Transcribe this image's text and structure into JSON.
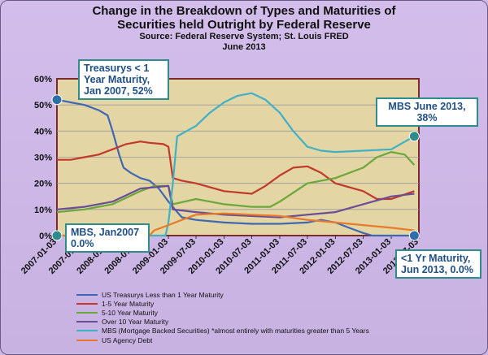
{
  "title_line1": "Change in the Breakdown of Types and Maturities of",
  "title_line2": "Securities held Outright by Federal Reserve",
  "source_line": "Source: Federal Reserve System; St. Louis FRED",
  "date_line": "June 2013",
  "callouts": {
    "treasury_jan2007": "Treasurys  < 1 Year Maturity, Jan 2007, 52%",
    "mbs_jun2013": "MBS  June 2013, 38%",
    "mbs_jan2007": "MBS, Jan2007 0.0%",
    "treasury_jun2013": "<1 Yr Maturity, Jun 2013, 0.0%"
  },
  "chart_data": {
    "type": "line",
    "ylim": [
      0,
      60
    ],
    "yticks": [
      "0%",
      "10%",
      "20%",
      "30%",
      "40%",
      "50%",
      "60%"
    ],
    "x_tick_labels": [
      "2007-01-03",
      "2007-07-03",
      "2008-01-03",
      "2008-07-03",
      "2009-01-03",
      "2009-07-03",
      "2010-01-03",
      "2010-07-03",
      "2011-01-03",
      "2011-07-03",
      "2012-01-03",
      "2012-07-03",
      "2013-01-03",
      "2013-07-03"
    ],
    "xlim": [
      "2007-01-03",
      "2013-07-03"
    ],
    "grid": true,
    "legend_position": "bottom",
    "series": [
      {
        "name": "US Treasurys Less than 1 Year Maturity",
        "color": "#3f68b4",
        "points": [
          [
            "2007-01-03",
            52
          ],
          [
            "2007-04-03",
            51
          ],
          [
            "2007-07-03",
            50
          ],
          [
            "2007-10-03",
            48
          ],
          [
            "2007-12-01",
            46
          ],
          [
            "2008-01-03",
            40
          ],
          [
            "2008-02-15",
            31
          ],
          [
            "2008-03-15",
            26
          ],
          [
            "2008-05-01",
            24
          ],
          [
            "2008-07-03",
            22
          ],
          [
            "2008-09-01",
            21
          ],
          [
            "2008-11-01",
            18
          ],
          [
            "2009-01-03",
            13
          ],
          [
            "2009-02-15",
            10
          ],
          [
            "2009-04-01",
            7
          ],
          [
            "2009-07-03",
            6
          ],
          [
            "2010-01-03",
            5
          ],
          [
            "2010-07-03",
            4.5
          ],
          [
            "2011-01-03",
            4.5
          ],
          [
            "2011-07-03",
            5
          ],
          [
            "2011-10-01",
            6
          ],
          [
            "2012-01-03",
            5
          ],
          [
            "2012-04-01",
            3
          ],
          [
            "2012-07-03",
            1
          ],
          [
            "2012-09-01",
            0
          ],
          [
            "2013-01-03",
            0
          ],
          [
            "2013-06-03",
            0
          ]
        ]
      },
      {
        "name": "1-5 Year Maturity",
        "color": "#c0392b",
        "points": [
          [
            "2007-01-03",
            29
          ],
          [
            "2007-04-03",
            29
          ],
          [
            "2007-07-03",
            30
          ],
          [
            "2007-10-03",
            31
          ],
          [
            "2008-01-03",
            33
          ],
          [
            "2008-04-01",
            35
          ],
          [
            "2008-07-03",
            36
          ],
          [
            "2008-09-01",
            35.5
          ],
          [
            "2008-12-01",
            35
          ],
          [
            "2009-01-03",
            34
          ],
          [
            "2009-02-01",
            22
          ],
          [
            "2009-04-01",
            21
          ],
          [
            "2009-07-03",
            20
          ],
          [
            "2010-01-03",
            17
          ],
          [
            "2010-07-03",
            16
          ],
          [
            "2010-10-01",
            19
          ],
          [
            "2011-01-03",
            23
          ],
          [
            "2011-04-01",
            26
          ],
          [
            "2011-07-03",
            26.5
          ],
          [
            "2011-10-01",
            24
          ],
          [
            "2012-01-03",
            20
          ],
          [
            "2012-07-03",
            17
          ],
          [
            "2012-10-01",
            14
          ],
          [
            "2013-01-03",
            14
          ],
          [
            "2013-06-03",
            17
          ]
        ]
      },
      {
        "name": "5-10 Year Maturity",
        "color": "#6aa83a",
        "points": [
          [
            "2007-01-03",
            9
          ],
          [
            "2007-07-03",
            10
          ],
          [
            "2008-01-03",
            12
          ],
          [
            "2008-07-03",
            17
          ],
          [
            "2008-10-01",
            19
          ],
          [
            "2009-01-03",
            19
          ],
          [
            "2009-02-01",
            12
          ],
          [
            "2009-07-03",
            14
          ],
          [
            "2010-01-03",
            12
          ],
          [
            "2010-07-03",
            11
          ],
          [
            "2010-11-01",
            11
          ],
          [
            "2011-01-03",
            13
          ],
          [
            "2011-07-03",
            20
          ],
          [
            "2012-01-03",
            22
          ],
          [
            "2012-07-03",
            26
          ],
          [
            "2012-10-01",
            30
          ],
          [
            "2013-01-03",
            32
          ],
          [
            "2013-04-01",
            31
          ],
          [
            "2013-06-03",
            27
          ]
        ]
      },
      {
        "name": "Over 10 Year Maturity",
        "color": "#6a4c97",
        "points": [
          [
            "2007-01-03",
            10
          ],
          [
            "2007-07-03",
            11
          ],
          [
            "2008-01-03",
            13
          ],
          [
            "2008-07-03",
            18
          ],
          [
            "2009-01-03",
            19
          ],
          [
            "2009-02-01",
            10
          ],
          [
            "2009-07-03",
            9
          ],
          [
            "2010-01-03",
            8
          ],
          [
            "2010-07-03",
            7.5
          ],
          [
            "2011-01-03",
            7
          ],
          [
            "2011-07-03",
            8
          ],
          [
            "2012-01-03",
            9
          ],
          [
            "2012-07-03",
            12
          ],
          [
            "2013-01-03",
            15
          ],
          [
            "2013-06-03",
            16
          ]
        ]
      },
      {
        "name": "MBS (Mortgage Backed Securities) *almost entirely with maturities greater than 5 Years",
        "color": "#3fb0c8",
        "points": [
          [
            "2007-01-03",
            0
          ],
          [
            "2008-12-15",
            0
          ],
          [
            "2009-01-03",
            5
          ],
          [
            "2009-02-01",
            20
          ],
          [
            "2009-03-01",
            38
          ],
          [
            "2009-07-03",
            42
          ],
          [
            "2009-10-01",
            47
          ],
          [
            "2010-01-03",
            51
          ],
          [
            "2010-04-01",
            53.5
          ],
          [
            "2010-07-03",
            54.5
          ],
          [
            "2010-10-01",
            52
          ],
          [
            "2011-01-03",
            47
          ],
          [
            "2011-04-01",
            40
          ],
          [
            "2011-07-03",
            34
          ],
          [
            "2011-10-01",
            32.5
          ],
          [
            "2012-01-03",
            32
          ],
          [
            "2012-07-03",
            32.5
          ],
          [
            "2013-01-03",
            33
          ],
          [
            "2013-06-03",
            38
          ]
        ]
      },
      {
        "name": "US Agency Debt",
        "color": "#e87a2a",
        "points": [
          [
            "2007-01-03",
            0
          ],
          [
            "2008-09-01",
            0
          ],
          [
            "2008-10-01",
            2
          ],
          [
            "2009-01-03",
            4
          ],
          [
            "2009-04-01",
            6
          ],
          [
            "2009-07-03",
            8
          ],
          [
            "2010-01-03",
            8.5
          ],
          [
            "2010-07-03",
            8
          ],
          [
            "2011-01-03",
            7.5
          ],
          [
            "2011-07-03",
            6
          ],
          [
            "2012-01-03",
            5
          ],
          [
            "2012-07-03",
            4
          ],
          [
            "2013-01-03",
            3
          ],
          [
            "2013-06-03",
            2
          ]
        ]
      }
    ]
  }
}
